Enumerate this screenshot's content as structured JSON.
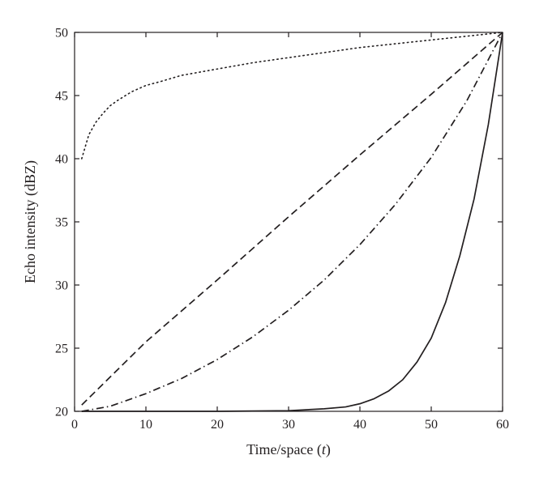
{
  "chart_data": {
    "type": "line",
    "title": "",
    "xlabel": {
      "prefix": "Time/space (",
      "variable": "t",
      "suffix": ")"
    },
    "ylabel": "Echo intensity (dBZ)",
    "xlim": [
      0,
      60
    ],
    "ylim": [
      20,
      50
    ],
    "x_ticks": [
      "0",
      "10",
      "20",
      "30",
      "40",
      "50",
      "60"
    ],
    "y_ticks": [
      "20",
      "25",
      "30",
      "35",
      "40",
      "45",
      "50"
    ],
    "grid": false,
    "legend": "none",
    "series": [
      {
        "style": "dotted",
        "color": "#231f20",
        "x": [
          1,
          2,
          3,
          4,
          5,
          6,
          8,
          10,
          12,
          15,
          20,
          25,
          30,
          35,
          40,
          45,
          50,
          55,
          60
        ],
        "y": [
          40.0,
          41.9,
          42.9,
          43.6,
          44.2,
          44.6,
          45.3,
          45.8,
          46.1,
          46.6,
          47.1,
          47.6,
          48.0,
          48.4,
          48.8,
          49.1,
          49.4,
          49.7,
          50.0
        ]
      },
      {
        "style": "dashed",
        "color": "#231f20",
        "x": [
          1,
          10,
          20,
          30,
          40,
          50,
          60
        ],
        "y": [
          20.5,
          25.5,
          30.4,
          35.4,
          40.3,
          45.1,
          50.0
        ]
      },
      {
        "style": "dash-dot",
        "color": "#231f20",
        "x": [
          1,
          5,
          10,
          15,
          20,
          25,
          30,
          35,
          40,
          45,
          50,
          55,
          60
        ],
        "y": [
          20.0,
          20.4,
          21.4,
          22.6,
          24.1,
          25.9,
          28.0,
          30.4,
          33.2,
          36.4,
          40.1,
          44.6,
          50.0
        ]
      },
      {
        "style": "solid",
        "color": "#231f20",
        "x": [
          1,
          10,
          20,
          30,
          35,
          38,
          40,
          42,
          44,
          46,
          48,
          50,
          52,
          54,
          56,
          58,
          60
        ],
        "y": [
          20.0,
          20.0,
          20.0,
          20.05,
          20.2,
          20.35,
          20.6,
          21.0,
          21.6,
          22.5,
          23.9,
          25.8,
          28.6,
          32.3,
          36.8,
          42.7,
          50.0
        ]
      }
    ]
  }
}
